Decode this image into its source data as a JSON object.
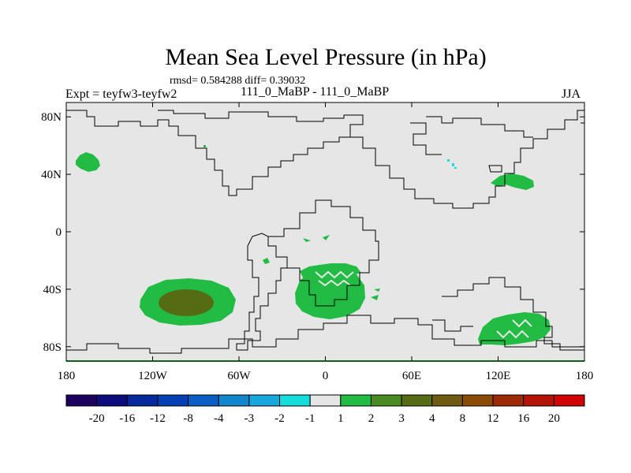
{
  "title": "Mean Sea Level Pressure (in hPa)",
  "stats": "rmsd= 0.584288 diff= 0.39032",
  "experiment": "Expt = teyfw3-teyfw2",
  "subtitle": "111_0_MaBP - 111_0_MaBP",
  "season": "JJA",
  "map": {
    "lon_range": [
      -180,
      180
    ],
    "lat_range": [
      -90,
      90
    ],
    "background_color": "#e6e6e6",
    "coastline_color": "#000000",
    "lat_ticks": [
      {
        "value": 80,
        "label": "80N"
      },
      {
        "value": 40,
        "label": "40N"
      },
      {
        "value": 0,
        "label": "0"
      },
      {
        "value": -40,
        "label": "40S"
      },
      {
        "value": -80,
        "label": "80S"
      }
    ],
    "lon_ticks": [
      {
        "value": -180,
        "label": "180"
      },
      {
        "value": -120,
        "label": "120W"
      },
      {
        "value": -60,
        "label": "60W"
      },
      {
        "value": 0,
        "label": "0"
      },
      {
        "value": 60,
        "label": "60E"
      },
      {
        "value": 120,
        "label": "120E"
      },
      {
        "value": 180,
        "label": "180"
      }
    ]
  },
  "colorbar": {
    "colors": [
      "#1d005e",
      "#0c0c7c",
      "#062a9e",
      "#0440b2",
      "#0a5ec4",
      "#1186cc",
      "#16a8dc",
      "#16dcdc",
      "#e6e6e6",
      "#22bb44",
      "#4a8a22",
      "#566c14",
      "#6e5a12",
      "#8a4a08",
      "#9c2a06",
      "#b41406",
      "#d00404"
    ],
    "labels": [
      "-20",
      "-16",
      "-12",
      "-8",
      "-4",
      "-3",
      "-2",
      "-1",
      "1",
      "2",
      "3",
      "4",
      "8",
      "12",
      "16",
      "20"
    ]
  }
}
